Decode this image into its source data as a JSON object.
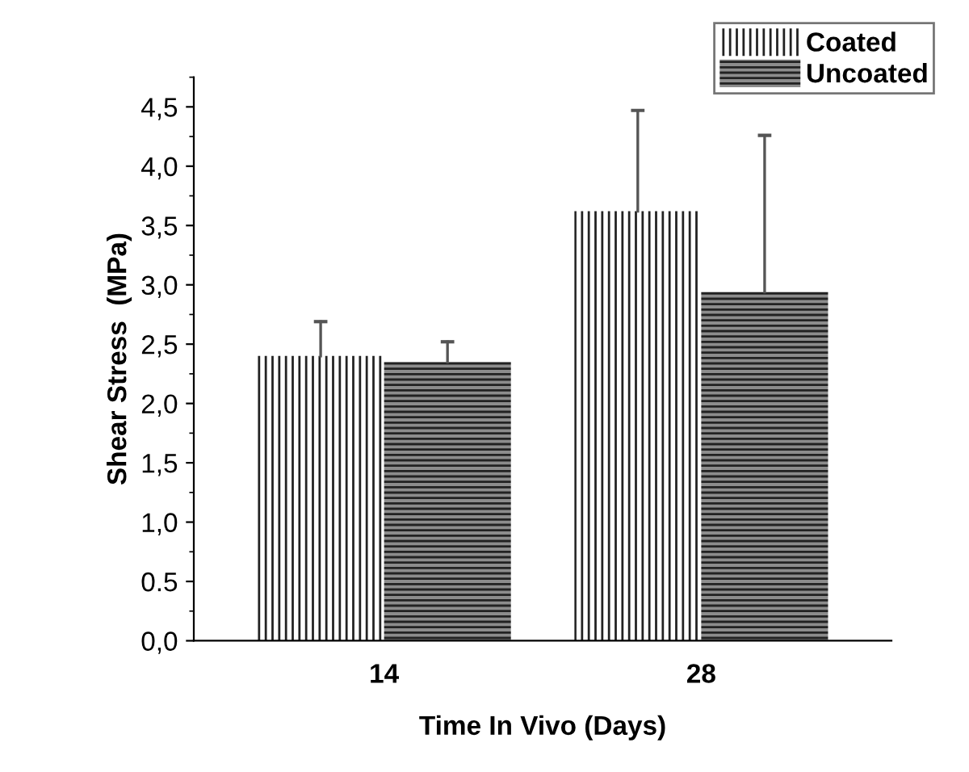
{
  "chart_data": {
    "type": "bar",
    "xlabel": "Time In Vivo (Days)",
    "ylabel": "Shear Stress  (MPa)",
    "categories": [
      "14",
      "28"
    ],
    "series": [
      {
        "name": "Coated",
        "color": "#ffffff",
        "values": [
          2.4,
          3.62
        ],
        "errors": [
          [
            2.4,
            2.69
          ],
          [
            3.62,
            4.47
          ]
        ]
      },
      {
        "name": "Uncoated",
        "color": "#8c8c8c",
        "values": [
          2.35,
          2.94
        ],
        "errors": [
          [
            2.35,
            2.52
          ],
          [
            2.94,
            4.26
          ]
        ]
      }
    ],
    "ylim": [
      0,
      4.75
    ],
    "yticks": [
      {
        "value": 0,
        "label": "0,0"
      },
      {
        "value": 0.5,
        "label": "0.5"
      },
      {
        "value": 1,
        "label": "1,0"
      },
      {
        "value": 1.5,
        "label": "1,5"
      },
      {
        "value": 2,
        "label": "2,0"
      },
      {
        "value": 2.5,
        "label": "2,5"
      },
      {
        "value": 3,
        "label": "3,0"
      },
      {
        "value": 3.5,
        "label": "3,5"
      },
      {
        "value": 4,
        "label": "4,0"
      },
      {
        "value": 4.5,
        "label": "4,5"
      }
    ],
    "grid": false,
    "legend": "top right"
  }
}
